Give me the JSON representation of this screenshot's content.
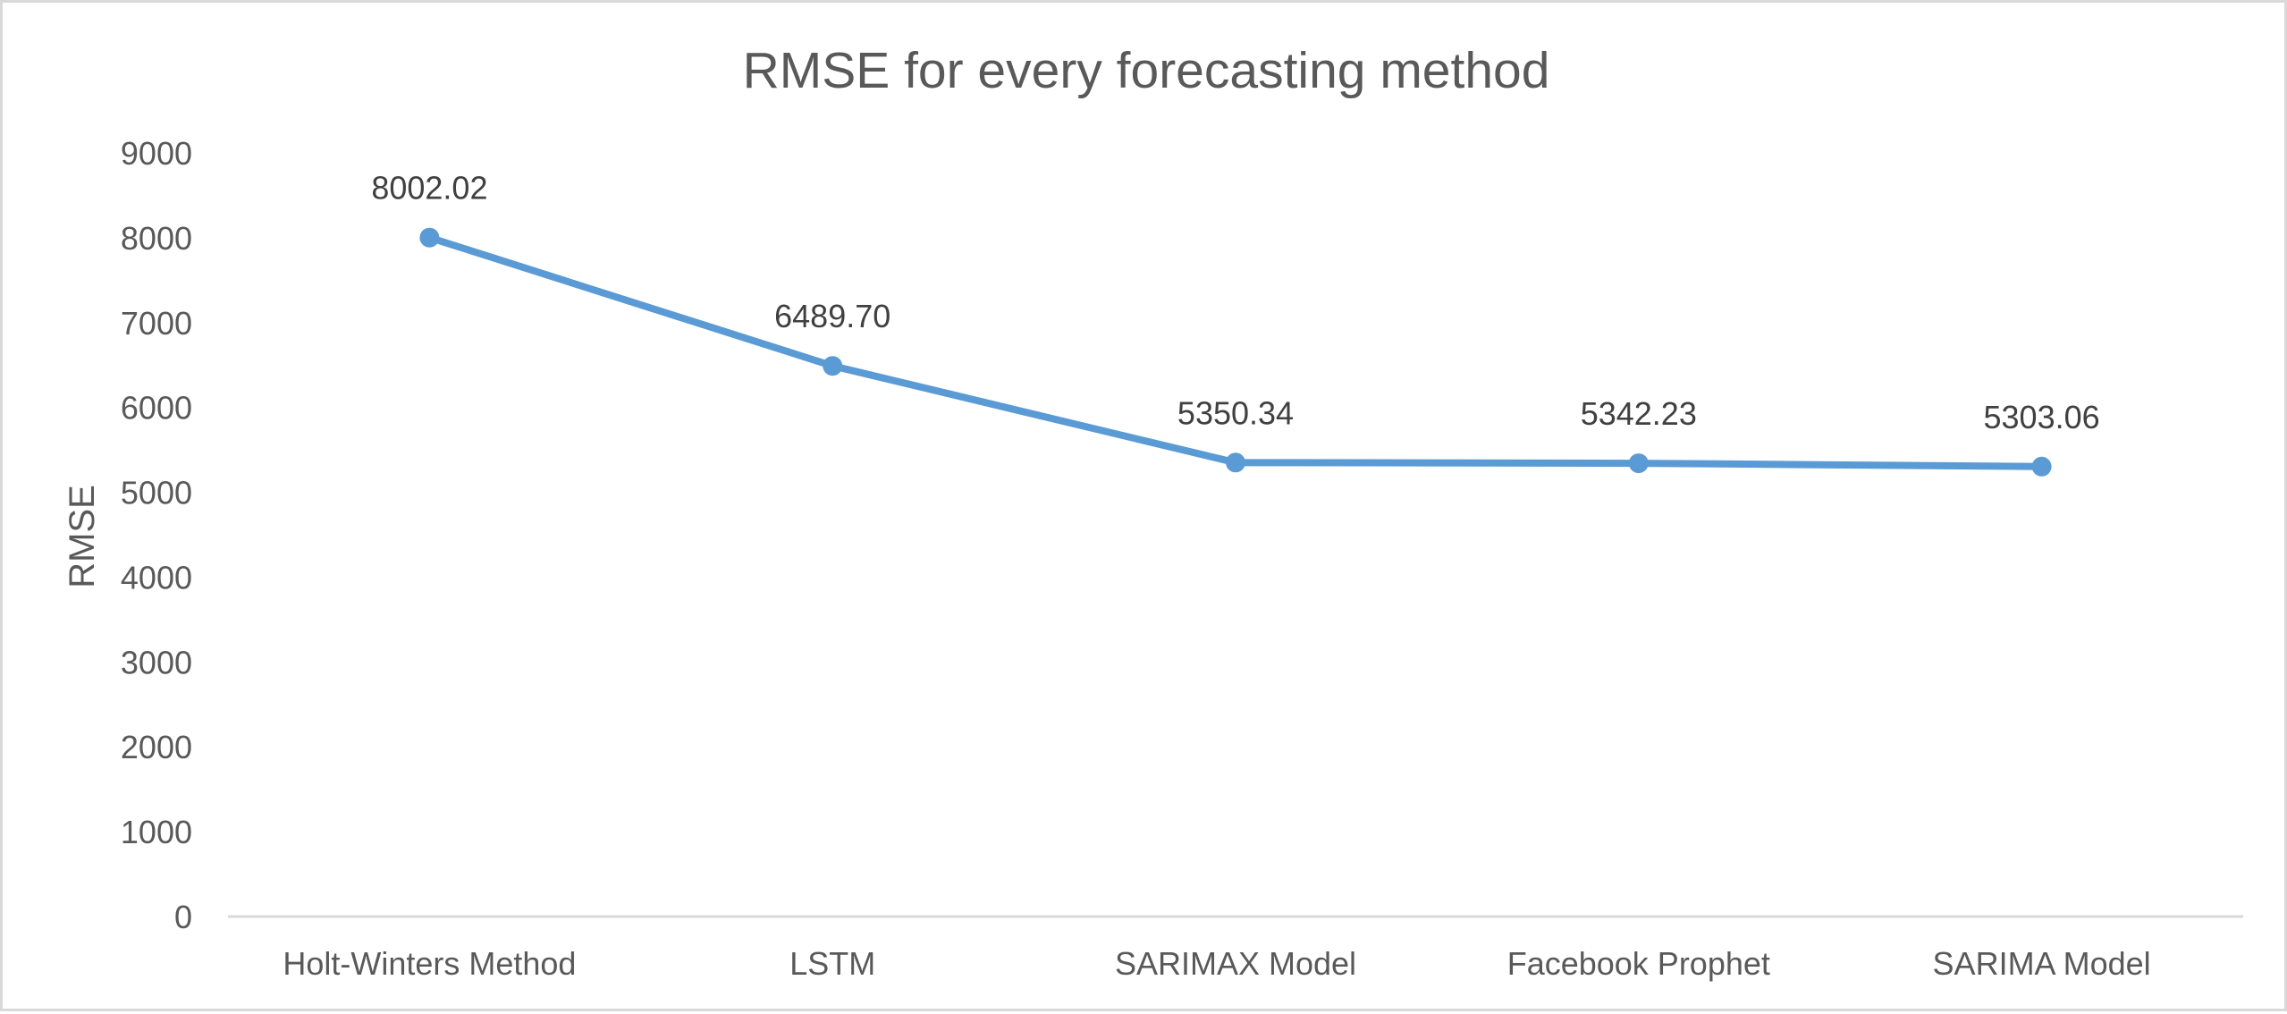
{
  "chart_data": {
    "type": "line",
    "title": "RMSE for every forecasting method",
    "ylabel": "RMSE",
    "xlabel": "",
    "categories": [
      "Holt-Winters Method",
      "LSTM",
      "SARIMAX Model",
      "Facebook Prophet",
      "SARIMA Model"
    ],
    "series": [
      {
        "values": [
          8002.02,
          6489.7,
          5350.34,
          5342.23,
          5303.06
        ],
        "color": "#5b9bd5"
      }
    ],
    "data_labels": [
      "8002.02",
      "6489.70",
      "5350.34",
      "5342.23",
      "5303.06"
    ],
    "ylim": [
      0,
      9000
    ],
    "yticks": [
      "0",
      "1000",
      "2000",
      "3000",
      "4000",
      "5000",
      "6000",
      "7000",
      "8000",
      "9000"
    ],
    "grid": false,
    "legend": "none"
  }
}
